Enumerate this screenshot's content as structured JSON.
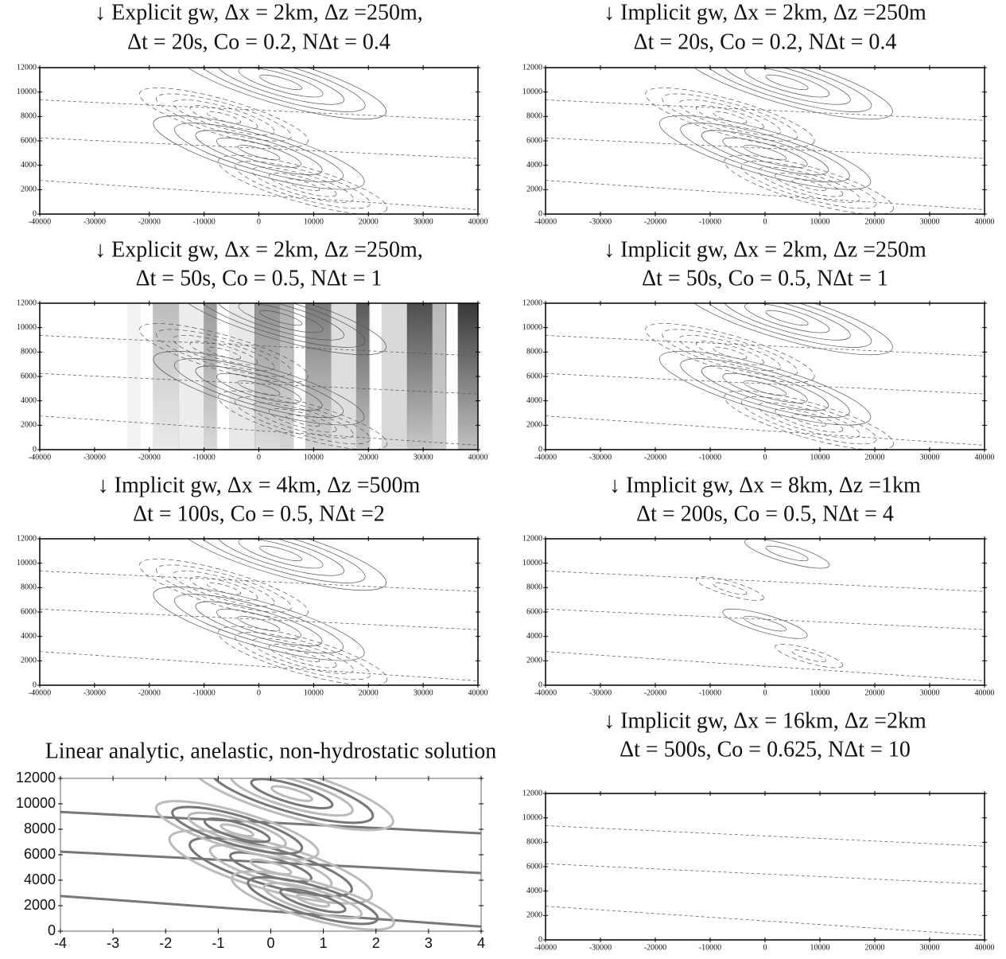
{
  "chart_data": [
    {
      "type": "contour",
      "title": [
        "↓ Explicit gw, Δx = 2km, Δz =250m,",
        "Δt = 20s, Co = 0.2, NΔt = 0.4"
      ],
      "xlim": [
        -40000,
        40000
      ],
      "ylim": [
        0,
        12000
      ],
      "xticks": [
        -40000,
        -30000,
        -20000,
        -10000,
        0,
        10000,
        20000,
        30000,
        40000
      ],
      "yticks": [
        0,
        2000,
        4000,
        6000,
        8000,
        10000,
        12000
      ]
    },
    {
      "type": "contour",
      "title": [
        "↓ Implicit gw, Δx = 2km, Δz =250m",
        "Δt = 20s, Co = 0.2, NΔt = 0.4"
      ],
      "xlim": [
        -40000,
        40000
      ],
      "ylim": [
        0,
        12000
      ],
      "xticks": [
        -40000,
        -30000,
        -20000,
        -10000,
        0,
        10000,
        20000,
        30000,
        40000
      ],
      "yticks": [
        0,
        2000,
        4000,
        6000,
        8000,
        10000,
        12000
      ]
    },
    {
      "type": "contour",
      "title": [
        "↓ Explicit gw, Δx = 2km, Δz =250m,",
        "Δt = 50s, Co = 0.5, NΔt = 1"
      ],
      "xlim": [
        -40000,
        40000
      ],
      "ylim": [
        0,
        12000
      ],
      "xticks": [
        -40000,
        -30000,
        -20000,
        -10000,
        0,
        10000,
        20000,
        30000,
        40000
      ],
      "yticks": [
        0,
        2000,
        4000,
        6000,
        8000,
        10000,
        12000
      ]
    },
    {
      "type": "contour",
      "title": [
        "↓ Implicit gw, Δx = 2km, Δz =250m",
        "Δt = 50s, Co = 0.5, NΔt = 1"
      ],
      "xlim": [
        -40000,
        40000
      ],
      "ylim": [
        0,
        12000
      ],
      "xticks": [
        -40000,
        -30000,
        -20000,
        -10000,
        0,
        10000,
        20000,
        30000,
        40000
      ],
      "yticks": [
        0,
        2000,
        4000,
        6000,
        8000,
        10000,
        12000
      ]
    },
    {
      "type": "contour",
      "title": [
        "↓ Implicit gw, Δx = 4km, Δz =500m",
        "Δt = 100s, Co = 0.5, NΔt =2"
      ],
      "xlim": [
        -40000,
        40000
      ],
      "ylim": [
        0,
        12000
      ],
      "xticks": [
        -40000,
        -30000,
        -20000,
        -10000,
        0,
        10000,
        20000,
        30000,
        40000
      ],
      "yticks": [
        0,
        2000,
        4000,
        6000,
        8000,
        10000,
        12000
      ]
    },
    {
      "type": "contour",
      "title": [
        "↓ Implicit gw, Δx = 8km, Δz =1km",
        "Δt = 200s, Co = 0.5, NΔt = 4"
      ],
      "xlim": [
        -40000,
        40000
      ],
      "ylim": [
        0,
        12000
      ],
      "xticks": [
        -40000,
        -30000,
        -20000,
        -10000,
        0,
        10000,
        20000,
        30000,
        40000
      ],
      "yticks": [
        0,
        2000,
        4000,
        6000,
        8000,
        10000,
        12000
      ]
    },
    {
      "type": "contour",
      "title": [
        "Linear analytic, anelastic, non-hydrostatic solution"
      ],
      "xlim": [
        -4,
        4
      ],
      "ylim": [
        0,
        12000
      ],
      "xticks": [
        -4,
        -3,
        -2,
        -1,
        0,
        1,
        2,
        3,
        4
      ],
      "yticks": [
        0,
        2000,
        4000,
        6000,
        8000,
        10000,
        12000
      ]
    },
    {
      "type": "contour",
      "title": [
        "↓ Implicit gw, Δx = 16km, Δz =2km",
        "Δt = 500s, Co = 0.625, NΔt = 10"
      ],
      "xlim": [
        -40000,
        40000
      ],
      "ylim": [
        0,
        12000
      ],
      "xticks": [
        -40000,
        -30000,
        -20000,
        -10000,
        0,
        10000,
        20000,
        30000,
        40000
      ],
      "yticks": [
        0,
        2000,
        4000,
        6000,
        8000,
        10000,
        12000
      ]
    }
  ]
}
